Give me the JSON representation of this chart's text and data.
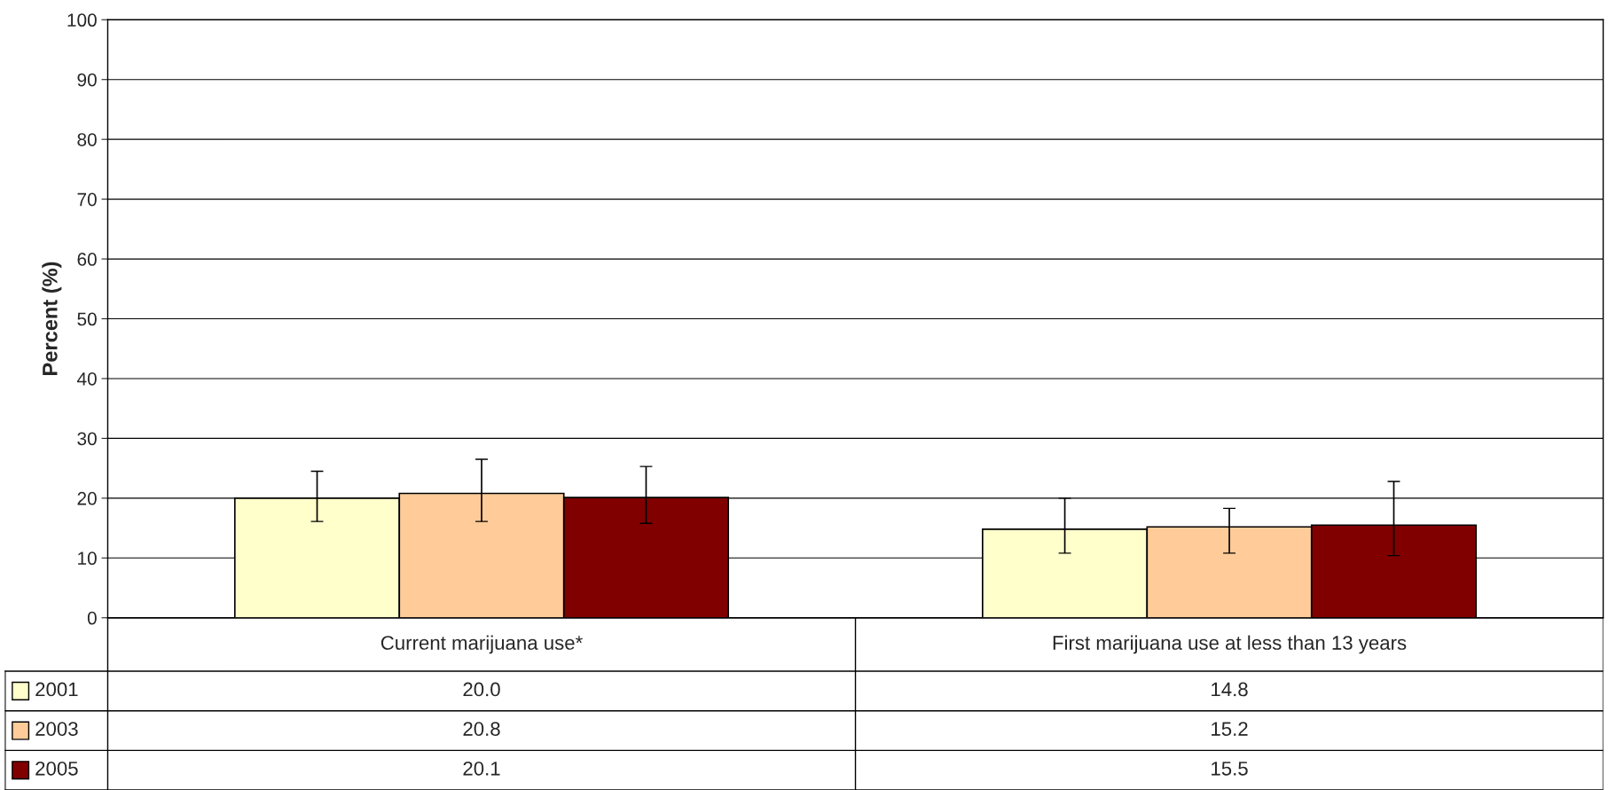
{
  "chart_data": {
    "type": "bar",
    "ylabel": "Percent (%)",
    "categories": [
      "Current marijuana use*",
      "First marijuana use at less than 13 years"
    ],
    "ylim": [
      0,
      100
    ],
    "yticks": [
      0,
      10,
      20,
      30,
      40,
      50,
      60,
      70,
      80,
      90,
      100
    ],
    "grid": "y",
    "legend": "bottom",
    "series": [
      {
        "name": "2001",
        "color": "#ffffcc",
        "values": [
          20.0,
          14.8
        ],
        "value_labels": [
          "20.0",
          "14.8"
        ],
        "errors": [
          [
            16.1,
            24.5
          ],
          [
            10.8,
            20.0
          ]
        ]
      },
      {
        "name": "2003",
        "color": "#ffcc99",
        "values": [
          20.8,
          15.2
        ],
        "value_labels": [
          "20.8",
          "15.2"
        ],
        "errors": [
          [
            16.1,
            26.5
          ],
          [
            10.8,
            18.3
          ]
        ]
      },
      {
        "name": "2005",
        "color": "#800000",
        "values": [
          20.1,
          15.5
        ],
        "value_labels": [
          "20.1",
          "15.5"
        ],
        "errors": [
          [
            15.8,
            25.3
          ],
          [
            10.4,
            22.8
          ]
        ]
      }
    ]
  }
}
